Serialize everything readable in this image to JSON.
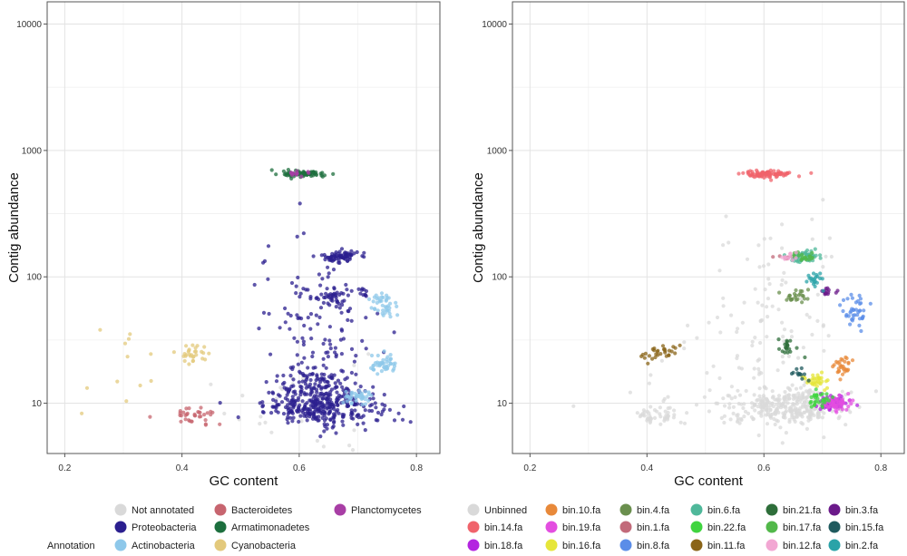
{
  "chart_data": [
    {
      "type": "scatter",
      "panel": "left",
      "xlabel": "GC content",
      "ylabel": "Contig abundance",
      "xlim": [
        0.17,
        0.84
      ],
      "ylim": [
        4,
        15000
      ],
      "y_scale": "log",
      "x_ticks": [
        "0.2",
        "0.4",
        "0.6",
        "0.8"
      ],
      "x_tick_values": [
        0.2,
        0.4,
        0.6,
        0.8
      ],
      "y_ticks": [
        "10",
        "100",
        "1000",
        "10000"
      ],
      "y_tick_values": [
        10,
        100,
        1000,
        10000
      ],
      "grid": true,
      "legend_title": "Annotation",
      "legend_placement": "bottom",
      "series": [
        {
          "name": "Not annotated",
          "color": "#d9d9d9",
          "clusters": [
            {
              "x": 0.6,
              "y": 10,
              "sx": 0.06,
              "sy": 0.25,
              "n": 30
            }
          ]
        },
        {
          "name": "Proteobacteria",
          "color": "#2b1f8f",
          "clusters": [
            {
              "x": 0.64,
              "y": 9.5,
              "sx": 0.05,
              "sy": 0.07,
              "n": 320
            },
            {
              "x": 0.63,
              "y": 14,
              "sx": 0.035,
              "sy": 0.06,
              "n": 80
            },
            {
              "x": 0.67,
              "y": 145,
              "sx": 0.015,
              "sy": 0.025,
              "n": 70
            },
            {
              "x": 0.655,
              "y": 70,
              "sx": 0.015,
              "sy": 0.04,
              "n": 40
            },
            {
              "x": 0.63,
              "y": 40,
              "sx": 0.05,
              "sy": 0.35,
              "n": 130
            },
            {
              "x": 0.71,
              "y": 75,
              "sx": 0.008,
              "sy": 0.02,
              "n": 10
            }
          ]
        },
        {
          "name": "Actinobacteria",
          "color": "#8ec8ea",
          "clusters": [
            {
              "x": 0.745,
              "y": 60,
              "sx": 0.012,
              "sy": 0.06,
              "n": 40
            },
            {
              "x": 0.745,
              "y": 20,
              "sx": 0.012,
              "sy": 0.035,
              "n": 45
            },
            {
              "x": 0.7,
              "y": 11,
              "sx": 0.012,
              "sy": 0.03,
              "n": 40
            }
          ]
        },
        {
          "name": "Bacteroidetes",
          "color": "#c7656f",
          "clusters": [
            {
              "x": 0.415,
              "y": 8,
              "sx": 0.022,
              "sy": 0.035,
              "n": 35
            }
          ]
        },
        {
          "name": "Armatimonadetes",
          "color": "#1d6f3e",
          "clusters": [
            {
              "x": 0.61,
              "y": 650,
              "sx": 0.018,
              "sy": 0.012,
              "n": 70
            }
          ]
        },
        {
          "name": "Cyanobacteria",
          "color": "#e3c97c",
          "clusters": [
            {
              "x": 0.42,
              "y": 25,
              "sx": 0.018,
              "sy": 0.04,
              "n": 30
            },
            {
              "x": 0.3,
              "y": 15,
              "sx": 0.05,
              "sy": 0.3,
              "n": 12
            }
          ]
        },
        {
          "name": "Planctomycetes",
          "color": "#a83ea5",
          "clusters": [
            {
              "x": 0.6,
              "y": 650,
              "sx": 0.01,
              "sy": 0.01,
              "n": 12
            }
          ]
        }
      ]
    },
    {
      "type": "scatter",
      "panel": "right",
      "xlabel": "GC content",
      "ylabel": "Contig abundance",
      "xlim": [
        0.17,
        0.84
      ],
      "ylim": [
        4,
        15000
      ],
      "y_scale": "log",
      "x_ticks": [
        "0.2",
        "0.4",
        "0.6",
        "0.8"
      ],
      "x_tick_values": [
        0.2,
        0.4,
        0.6,
        0.8
      ],
      "y_ticks": [
        "10",
        "100",
        "1000",
        "10000"
      ],
      "y_tick_values": [
        10,
        100,
        1000,
        10000
      ],
      "grid": true,
      "legend_title": "",
      "legend_placement": "bottom",
      "series": [
        {
          "name": "Unbinned",
          "color": "#d9d9d9",
          "clusters": [
            {
              "x": 0.64,
              "y": 9.5,
              "sx": 0.05,
              "sy": 0.07,
              "n": 320
            },
            {
              "x": 0.415,
              "y": 8,
              "sx": 0.022,
              "sy": 0.035,
              "n": 45
            },
            {
              "x": 0.62,
              "y": 40,
              "sx": 0.06,
              "sy": 0.4,
              "n": 100
            },
            {
              "x": 0.5,
              "y": 15,
              "sx": 0.08,
              "sy": 0.3,
              "n": 30
            }
          ]
        },
        {
          "name": "bin.14.fa",
          "color": "#f0636b",
          "clusters": [
            {
              "x": 0.605,
              "y": 650,
              "sx": 0.02,
              "sy": 0.013,
              "n": 90
            }
          ]
        },
        {
          "name": "bin.18.fa",
          "color": "#b324e0",
          "clusters": [
            {
              "x": 0.715,
              "y": 10,
              "sx": 0.012,
              "sy": 0.03,
              "n": 55
            }
          ]
        },
        {
          "name": "bin.10.fa",
          "color": "#e8893a",
          "clusters": [
            {
              "x": 0.735,
              "y": 20,
              "sx": 0.008,
              "sy": 0.035,
              "n": 30
            }
          ]
        },
        {
          "name": "bin.19.fa",
          "color": "#e34ee0",
          "clusters": [
            {
              "x": 0.725,
              "y": 10,
              "sx": 0.012,
              "sy": 0.03,
              "n": 50
            }
          ]
        },
        {
          "name": "bin.16.fa",
          "color": "#e6e63a",
          "clusters": [
            {
              "x": 0.69,
              "y": 15,
              "sx": 0.01,
              "sy": 0.025,
              "n": 35
            }
          ]
        },
        {
          "name": "bin.4.fa",
          "color": "#6a8f4e",
          "clusters": [
            {
              "x": 0.655,
              "y": 70,
              "sx": 0.012,
              "sy": 0.03,
              "n": 25
            }
          ]
        },
        {
          "name": "bin.1.fa",
          "color": "#c26a7a",
          "clusters": [
            {
              "x": 0.64,
              "y": 145,
              "sx": 0.01,
              "sy": 0.02,
              "n": 12
            }
          ]
        },
        {
          "name": "bin.8.fa",
          "color": "#5b8de8",
          "clusters": [
            {
              "x": 0.755,
              "y": 55,
              "sx": 0.012,
              "sy": 0.06,
              "n": 40
            }
          ]
        },
        {
          "name": "bin.6.fa",
          "color": "#4fb89a",
          "clusters": [
            {
              "x": 0.67,
              "y": 145,
              "sx": 0.014,
              "sy": 0.022,
              "n": 50
            }
          ]
        },
        {
          "name": "bin.22.fa",
          "color": "#3fd43f",
          "clusters": [
            {
              "x": 0.695,
              "y": 11,
              "sx": 0.01,
              "sy": 0.03,
              "n": 30
            }
          ]
        },
        {
          "name": "bin.11.fa",
          "color": "#8a6418",
          "clusters": [
            {
              "x": 0.425,
              "y": 25,
              "sx": 0.015,
              "sy": 0.035,
              "n": 30
            }
          ]
        },
        {
          "name": "bin.21.fa",
          "color": "#2e6e3a",
          "clusters": [
            {
              "x": 0.64,
              "y": 28,
              "sx": 0.012,
              "sy": 0.035,
              "n": 20
            }
          ]
        },
        {
          "name": "bin.17.fa",
          "color": "#52b84a",
          "clusters": [
            {
              "x": 0.67,
              "y": 145,
              "sx": 0.01,
              "sy": 0.02,
              "n": 20
            }
          ]
        },
        {
          "name": "bin.12.fa",
          "color": "#f2a7d3",
          "clusters": [
            {
              "x": 0.645,
              "y": 145,
              "sx": 0.008,
              "sy": 0.02,
              "n": 12
            }
          ]
        },
        {
          "name": "bin.3.fa",
          "color": "#6b1a8a",
          "clusters": [
            {
              "x": 0.71,
              "y": 75,
              "sx": 0.008,
              "sy": 0.02,
              "n": 14
            }
          ]
        },
        {
          "name": "bin.15.fa",
          "color": "#1f5a5e",
          "clusters": [
            {
              "x": 0.66,
              "y": 17,
              "sx": 0.008,
              "sy": 0.03,
              "n": 12
            }
          ]
        },
        {
          "name": "bin.2.fa",
          "color": "#2aa3a8",
          "clusters": [
            {
              "x": 0.69,
              "y": 95,
              "sx": 0.01,
              "sy": 0.03,
              "n": 20
            }
          ]
        }
      ]
    }
  ]
}
